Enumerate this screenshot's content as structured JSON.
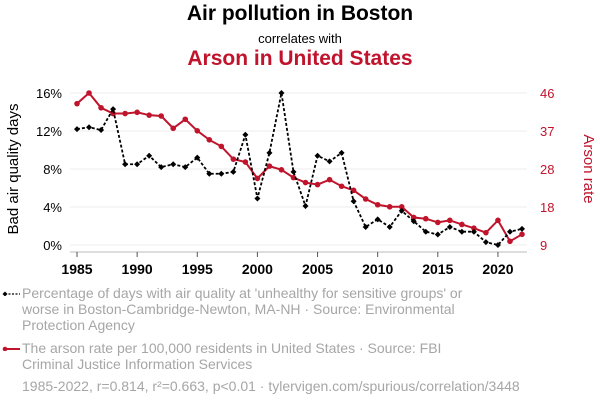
{
  "header": {
    "title": "Air pollution in Boston",
    "subtitle": "correlates with",
    "title2": "Arson in United States"
  },
  "colors": {
    "series1": "#000000",
    "series2": "#c0142d",
    "legend_text": "#a6a6a6",
    "grid": "#eeeeee"
  },
  "chart_data": {
    "type": "line",
    "title": "Air pollution in Boston correlates with Arson in United States",
    "xlabel": "",
    "x": [
      1985,
      1986,
      1987,
      1988,
      1989,
      1990,
      1991,
      1992,
      1993,
      1994,
      1995,
      1996,
      1997,
      1998,
      1999,
      2000,
      2001,
      2002,
      2003,
      2004,
      2005,
      2006,
      2007,
      2008,
      2009,
      2010,
      2011,
      2012,
      2013,
      2014,
      2015,
      2016,
      2017,
      2018,
      2019,
      2020,
      2021,
      2022
    ],
    "x_ticks": [
      "1985",
      "1990",
      "1995",
      "2000",
      "2005",
      "2010",
      "2015",
      "2020"
    ],
    "xlim": [
      1985,
      2022
    ],
    "y_left": {
      "label": "Bad air quality days",
      "ticks": [
        "0%",
        "4%",
        "8%",
        "12%",
        "16%"
      ],
      "ylim": [
        0,
        16
      ]
    },
    "y_right": {
      "label": "Arson rate",
      "ticks": [
        "9",
        "18",
        "28",
        "37",
        "46"
      ],
      "ylim": [
        9,
        46
      ]
    },
    "grid": true,
    "series": [
      {
        "name": "Percentage of days with air quality at 'unhealthy for sensitive groups' or worse in Boston-Cambridge-Newton, MA-NH · Source: Environmental Protection Agency",
        "axis": "left",
        "style": "dashed-diamond",
        "values": [
          12.2,
          12.4,
          12.1,
          14.3,
          8.5,
          8.5,
          9.4,
          8.2,
          8.5,
          8.2,
          9.2,
          7.5,
          7.5,
          7.7,
          11.6,
          4.9,
          9.7,
          16.0,
          7.7,
          4.1,
          9.4,
          8.8,
          9.7,
          4.6,
          1.9,
          2.7,
          1.9,
          3.6,
          2.5,
          1.4,
          1.1,
          1.9,
          1.4,
          1.4,
          0.3,
          0.0,
          1.4,
          1.7
        ]
      },
      {
        "name": "The arson rate per 100,000 residents in United States · Source: FBI Criminal Justice Information Services",
        "axis": "right",
        "style": "solid-dot",
        "values": [
          43.4,
          46.0,
          42.4,
          41.0,
          41.0,
          41.3,
          40.6,
          40.4,
          37.4,
          39.6,
          36.8,
          34.6,
          33.0,
          29.9,
          29.2,
          25.2,
          28.2,
          27.3,
          25.4,
          24.2,
          23.7,
          24.9,
          23.3,
          22.3,
          20.2,
          18.8,
          18.3,
          18.3,
          15.7,
          15.4,
          14.5,
          15.0,
          14.0,
          13.1,
          12.0,
          15.0,
          9.9,
          11.6
        ]
      }
    ],
    "legend_placement": "bottom-left"
  },
  "legend": {
    "item1": "Percentage of days with air quality at 'unhealthy for sensitive groups' or worse in Boston-Cambridge-Newton, MA-NH · Source: Environmental Protection Agency",
    "item2": "The arson rate per 100,000 residents in United States · Source: FBI Criminal Justice Information Services"
  },
  "footer": "1985-2022, r=0.814, r²=0.663, p<0.01 · tylervigen.com/spurious/correlation/3448"
}
